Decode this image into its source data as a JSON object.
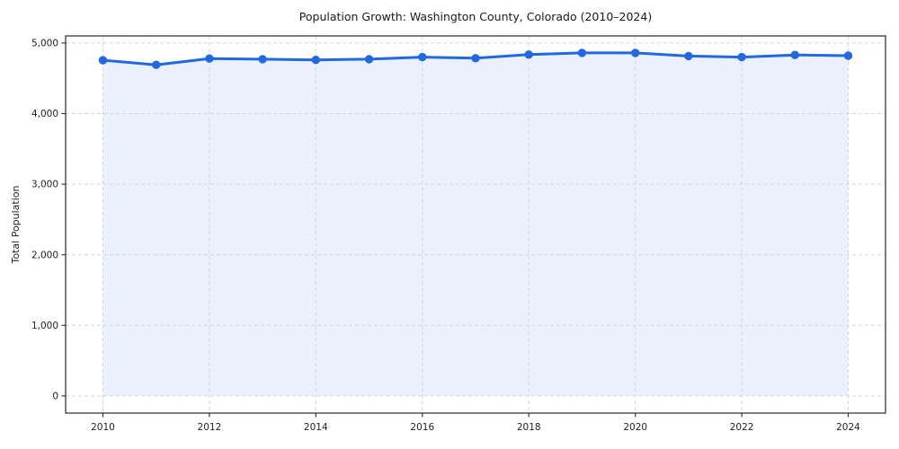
{
  "chart_data": {
    "type": "line",
    "title": "Population Growth: Washington County, Colorado (2010–2024)",
    "xlabel": "",
    "ylabel": "Total Population",
    "x": [
      2010,
      2011,
      2012,
      2013,
      2014,
      2015,
      2016,
      2017,
      2018,
      2019,
      2020,
      2021,
      2022,
      2023,
      2024
    ],
    "series": [
      {
        "name": "Total Population",
        "values": [
          4755,
          4690,
          4780,
          4770,
          4760,
          4770,
          4800,
          4785,
          4835,
          4860,
          4860,
          4815,
          4800,
          4830,
          4820
        ]
      }
    ],
    "xticks": [
      2010,
      2012,
      2014,
      2016,
      2018,
      2020,
      2022,
      2024
    ],
    "xtick_labels": [
      "2010",
      "2012",
      "2014",
      "2016",
      "2018",
      "2020",
      "2022",
      "2024"
    ],
    "yticks": [
      0,
      1000,
      2000,
      3000,
      4000,
      5000
    ],
    "ytick_labels": [
      "0",
      "1,000",
      "2,000",
      "3,000",
      "4,000",
      "5,000"
    ],
    "xlim": [
      2009.3,
      2024.7
    ],
    "ylim": [
      -243,
      5100
    ],
    "grid": true,
    "grid_style": "dashed",
    "legend": false,
    "area_fill": true,
    "marker": "circle",
    "colors": {
      "line": "#2069e0",
      "marker": "#2069e0",
      "fill": "#2069e0",
      "fill_opacity": 0.09,
      "grid": "#d6d6d6",
      "spine": "#2a2a2a",
      "text": "#1a1a1a",
      "background": "#ffffff"
    }
  }
}
